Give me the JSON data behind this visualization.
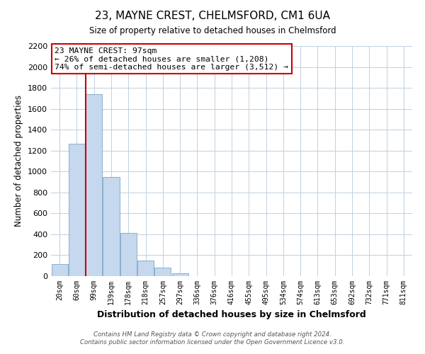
{
  "title": "23, MAYNE CREST, CHELMSFORD, CM1 6UA",
  "subtitle": "Size of property relative to detached houses in Chelmsford",
  "xlabel": "Distribution of detached houses by size in Chelmsford",
  "ylabel": "Number of detached properties",
  "bar_labels": [
    "20sqm",
    "60sqm",
    "99sqm",
    "139sqm",
    "178sqm",
    "218sqm",
    "257sqm",
    "297sqm",
    "336sqm",
    "376sqm",
    "416sqm",
    "455sqm",
    "495sqm",
    "534sqm",
    "574sqm",
    "613sqm",
    "653sqm",
    "692sqm",
    "732sqm",
    "771sqm",
    "811sqm"
  ],
  "bar_values": [
    115,
    1265,
    1740,
    950,
    415,
    150,
    80,
    30,
    0,
    0,
    0,
    0,
    0,
    0,
    0,
    0,
    0,
    0,
    0,
    0,
    0
  ],
  "bar_color": "#c5d8ed",
  "bar_edgecolor": "#8ab0cc",
  "vline_color": "#cc0000",
  "vline_x": 1.5,
  "ylim": [
    0,
    2200
  ],
  "yticks": [
    0,
    200,
    400,
    600,
    800,
    1000,
    1200,
    1400,
    1600,
    1800,
    2000,
    2200
  ],
  "annotation_title": "23 MAYNE CREST: 97sqm",
  "annotation_line1": "← 26% of detached houses are smaller (1,208)",
  "annotation_line2": "74% of semi-detached houses are larger (3,512) →",
  "annotation_box_color": "#ffffff",
  "annotation_box_edgecolor": "#cc0000",
  "footer1": "Contains HM Land Registry data © Crown copyright and database right 2024.",
  "footer2": "Contains public sector information licensed under the Open Government Licence v3.0.",
  "background_color": "#ffffff",
  "grid_color": "#c0d0e0"
}
